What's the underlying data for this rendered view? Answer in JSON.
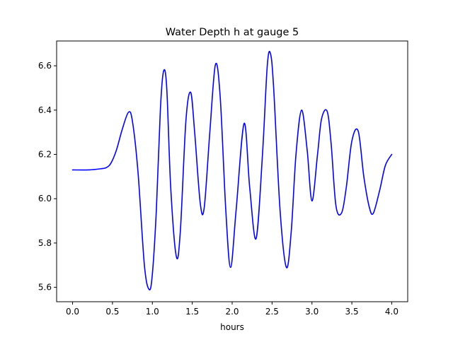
{
  "chart_data": {
    "type": "line",
    "title": "Water Depth h at gauge 5",
    "xlabel": "hours",
    "ylabel": "",
    "xlim": [
      -0.2,
      4.2
    ],
    "ylim": [
      5.535,
      6.712
    ],
    "xticks": [
      0.0,
      0.5,
      1.0,
      1.5,
      2.0,
      2.5,
      3.0,
      3.5,
      4.0
    ],
    "xtick_labels": [
      "0.0",
      "0.5",
      "1.0",
      "1.5",
      "2.0",
      "2.5",
      "3.0",
      "3.5",
      "4.0"
    ],
    "yticks": [
      5.6,
      5.8,
      6.0,
      6.2,
      6.4,
      6.6
    ],
    "ytick_labels": [
      "5.6",
      "5.8",
      "6.0",
      "6.2",
      "6.4",
      "6.6"
    ],
    "grid": false,
    "legend": "none",
    "series": [
      {
        "color": "#0000ff",
        "x": [
          0.0,
          0.2,
          0.35,
          0.42,
          0.48,
          0.55,
          0.62,
          0.7,
          0.75,
          0.82,
          0.9,
          0.96,
          1.0,
          1.05,
          1.1,
          1.14,
          1.18,
          1.23,
          1.3,
          1.35,
          1.42,
          1.48,
          1.53,
          1.6,
          1.65,
          1.72,
          1.79,
          1.85,
          1.92,
          1.98,
          2.05,
          2.15,
          2.22,
          2.3,
          2.38,
          2.44,
          2.48,
          2.52,
          2.6,
          2.68,
          2.74,
          2.8,
          2.87,
          2.94,
          3.0,
          3.07,
          3.12,
          3.19,
          3.24,
          3.3,
          3.37,
          3.43,
          3.5,
          3.58,
          3.65,
          3.72,
          3.77,
          3.85,
          3.92,
          4.0
        ],
        "y": [
          6.13,
          6.13,
          6.135,
          6.14,
          6.16,
          6.22,
          6.31,
          6.39,
          6.35,
          6.12,
          5.7,
          5.59,
          5.66,
          5.95,
          6.4,
          6.575,
          6.5,
          6.05,
          5.74,
          5.85,
          6.35,
          6.48,
          6.3,
          5.98,
          5.96,
          6.3,
          6.605,
          6.46,
          5.95,
          5.69,
          5.95,
          6.34,
          6.05,
          5.82,
          6.2,
          6.6,
          6.655,
          6.5,
          5.95,
          5.69,
          5.85,
          6.2,
          6.4,
          6.22,
          5.99,
          6.2,
          6.36,
          6.395,
          6.25,
          5.97,
          5.935,
          6.05,
          6.26,
          6.305,
          6.1,
          5.96,
          5.935,
          6.04,
          6.15,
          6.2
        ]
      }
    ]
  }
}
